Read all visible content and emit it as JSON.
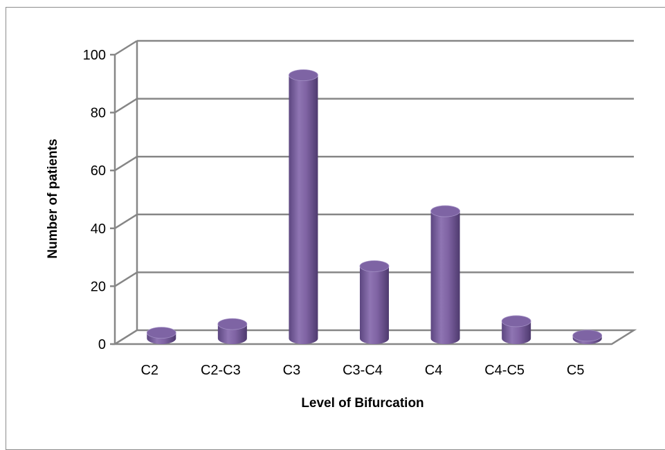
{
  "chart_data": {
    "type": "bar",
    "categories": [
      "C2",
      "C2-C3",
      "C3",
      "C3-C4",
      "C4",
      "C4-C5",
      "C5"
    ],
    "values": [
      2,
      5,
      91,
      25,
      44,
      6,
      1
    ],
    "xlabel": "Level of Bifurcation",
    "ylabel": "Number of patients",
    "ylim": [
      0,
      100
    ],
    "yticks": [
      0,
      20,
      40,
      60,
      80,
      100
    ],
    "grid": true,
    "style": "3d-cylinder",
    "bar_color": "#8064a2",
    "grid_color": "#868686"
  }
}
